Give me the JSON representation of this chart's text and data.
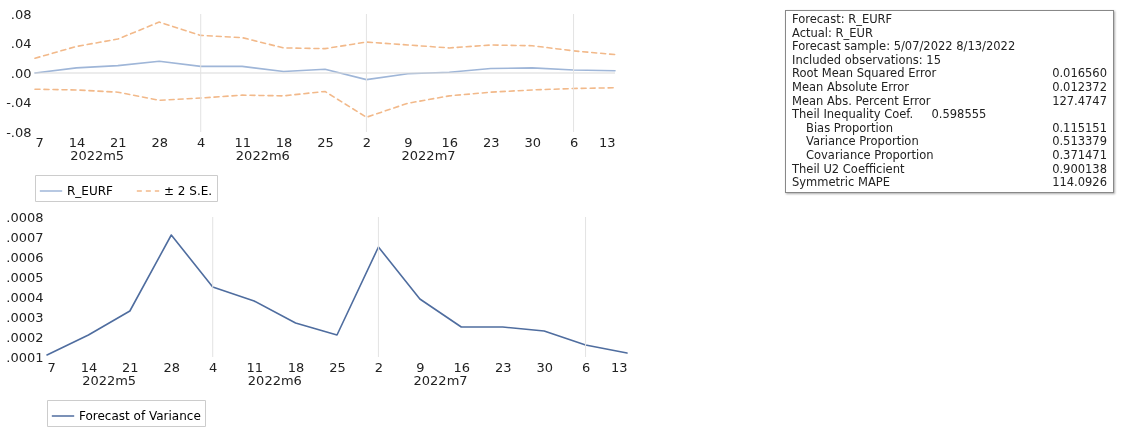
{
  "chart_data": [
    {
      "type": "line",
      "categories": [
        "7",
        "14",
        "21",
        "28",
        "4",
        "11",
        "18",
        "25",
        "2",
        "9",
        "16",
        "23",
        "30",
        "6",
        "13"
      ],
      "series": [
        {
          "name": "R_EURF",
          "color": "#9fb6d8",
          "line_style": "solid",
          "values": [
            0.0,
            0.007,
            0.01,
            0.016,
            0.009,
            0.009,
            0.002,
            0.005,
            -0.009,
            -0.001,
            0.001,
            0.006,
            0.007,
            0.004,
            0.003
          ]
        },
        {
          "name": "± 2 S.E.",
          "color": "#f2b98a",
          "line_style": "dashed",
          "values": [
            0.02,
            0.036,
            0.046,
            0.069,
            0.051,
            0.048,
            0.034,
            0.033,
            0.042,
            0.038,
            0.034,
            0.038,
            0.037,
            0.03,
            0.025
          ]
        },
        {
          "color": "#f2b98a",
          "line_style": "dashed",
          "values": [
            -0.022,
            -0.023,
            -0.026,
            -0.037,
            -0.034,
            -0.03,
            -0.031,
            -0.025,
            -0.06,
            -0.041,
            -0.031,
            -0.026,
            -0.023,
            -0.021,
            -0.02
          ]
        }
      ],
      "ylim": [
        -0.08,
        0.08
      ],
      "yticks": [
        {
          "value": -0.08,
          "label": "-.08"
        },
        {
          "value": -0.04,
          "label": "-.04"
        },
        {
          "value": 0,
          "label": ".00"
        },
        {
          "value": 0.04,
          "label": ".04"
        },
        {
          "value": 0.08,
          "label": ".08"
        }
      ],
      "ref_lines": [
        {
          "axis": "y",
          "value": 0,
          "color": "#d9d9d9"
        },
        {
          "axis": "x",
          "value": "4",
          "color": "#e3e3e3"
        },
        {
          "axis": "x",
          "value": "2",
          "color": "#e3e3e3"
        },
        {
          "axis": "x",
          "value": "6",
          "color": "#e3e3e3"
        }
      ],
      "annotations": [
        "2022m5",
        "2022m6",
        "2022m7"
      ],
      "legend": "bottom",
      "grid": false
    },
    {
      "type": "line",
      "categories": [
        "7",
        "14",
        "21",
        "28",
        "4",
        "11",
        "18",
        "25",
        "2",
        "9",
        "16",
        "23",
        "30",
        "6",
        "13"
      ],
      "series": [
        {
          "name": "Forecast of Variance",
          "color": "#4f6d9f",
          "line_style": "solid",
          "values": [
            0.00011,
            0.00021,
            0.00033,
            0.00071,
            0.00045,
            0.00038,
            0.00027,
            0.00021,
            0.00065,
            0.00039,
            0.00025,
            0.00025,
            0.00023,
            0.00016,
            0.00012
          ]
        }
      ],
      "ylim": [
        0.0001,
        0.0008
      ],
      "yticks": [
        {
          "value": 0.0001,
          "label": ".0001"
        },
        {
          "value": 0.0002,
          "label": ".0002"
        },
        {
          "value": 0.0003,
          "label": ".0003"
        },
        {
          "value": 0.0004,
          "label": ".0004"
        },
        {
          "value": 0.0005,
          "label": ".0005"
        },
        {
          "value": 0.0006,
          "label": ".0006"
        },
        {
          "value": 0.0007,
          "label": ".0007"
        },
        {
          "value": 0.0008,
          "label": ".0008"
        }
      ],
      "ref_lines": [
        {
          "axis": "x",
          "value": "4",
          "color": "#e3e3e3"
        },
        {
          "axis": "x",
          "value": "2",
          "color": "#e3e3e3"
        },
        {
          "axis": "x",
          "value": "6",
          "color": "#e3e3e3"
        }
      ],
      "annotations": [
        "2022m5",
        "2022m6",
        "2022m7"
      ],
      "legend": "bottom",
      "grid": false
    },
    {
      "type": "other",
      "categories": [
        "Forecast: R_EURF",
        "Actual: R_EUR",
        "Forecast sample: 5/07/2022 8/13/2022",
        "Included observations: 15",
        "Root Mean Squared Error",
        "Mean Absolute Error",
        "Mean Abs. Percent Error",
        "Theil Inequality Coef.     0.598555",
        "Bias Proportion",
        "Variance Proportion",
        "Covariance Proportion",
        "Theil U2 Coefficient",
        "Symmetric MAPE"
      ],
      "value_labels": [
        null,
        null,
        null,
        null,
        "0.016560",
        "0.012372",
        "127.4747",
        null,
        "0.115151",
        "0.513379",
        "0.371471",
        "0.900138",
        "114.0926"
      ]
    }
  ]
}
